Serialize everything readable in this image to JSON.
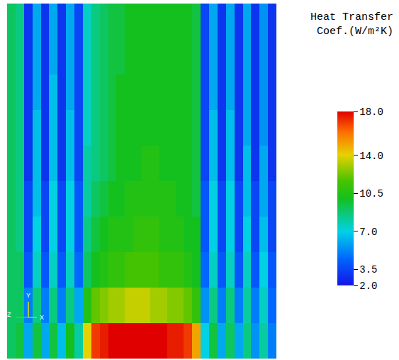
{
  "chart_data": {
    "type": "heatmap",
    "colorbar_title": [
      "Heat Transfer",
      "Coef.(W/m²K)"
    ],
    "colorbar_range": [
      2,
      18
    ],
    "colorbar_ticks": [
      {
        "value": 18,
        "label": "18.0"
      },
      {
        "value": 14,
        "label": "14.0"
      },
      10.5,
      {
        "value": 7,
        "label": "7.0"
      },
      3.5,
      {
        "value": 2,
        "label": "2.0"
      }
    ],
    "tick_labels": false,
    "triad_labels": [
      "Z",
      "Y",
      "X"
    ],
    "cells": [
      [
        9,
        8.5,
        3,
        6,
        3,
        6,
        3,
        6,
        3.5,
        7.5,
        8.5,
        9,
        9.5,
        9.5,
        10,
        10,
        10,
        10,
        10,
        10,
        10,
        10,
        9.5,
        3.5,
        6,
        3,
        6,
        3,
        6,
        3,
        5.5,
        3
      ],
      [
        9,
        8.5,
        3,
        6,
        3,
        6,
        3,
        6,
        3.5,
        7.5,
        8.5,
        9,
        9.5,
        9.5,
        10,
        10,
        10,
        10,
        10,
        10,
        10,
        10,
        9.5,
        3.5,
        6,
        3,
        6,
        3,
        6,
        3,
        5.5,
        3
      ],
      [
        9,
        8.5,
        3,
        6,
        3,
        6.5,
        3,
        6,
        3.5,
        7.5,
        8.5,
        9,
        9.5,
        10,
        10,
        10,
        10,
        10,
        10,
        10,
        10,
        10,
        9.5,
        3.5,
        6,
        3,
        6,
        3,
        6,
        3,
        5.5,
        3
      ],
      [
        9,
        8.5,
        3,
        6.5,
        3,
        6.5,
        3,
        6.5,
        3.5,
        7.5,
        8.5,
        9,
        9.5,
        10,
        10,
        10,
        10,
        10,
        10,
        10,
        10,
        10,
        9.5,
        3.5,
        6.5,
        3,
        6.5,
        3,
        6,
        3,
        5.5,
        3
      ],
      [
        9,
        8.5,
        3,
        6.5,
        3,
        6.5,
        3,
        6.5,
        3.5,
        8,
        8.5,
        9,
        9.5,
        10,
        10,
        10,
        10.5,
        10.5,
        10,
        10,
        10,
        10,
        9.5,
        3.5,
        6.5,
        3,
        6.5,
        3,
        6.5,
        3,
        6,
        3
      ],
      [
        9,
        8.5,
        3.5,
        6.5,
        3.5,
        7,
        3.5,
        7,
        4,
        8,
        9,
        9.5,
        10,
        10,
        10.5,
        10.5,
        10.5,
        10.5,
        10.5,
        10.5,
        10,
        10,
        9.5,
        4,
        7,
        3.5,
        7,
        3.5,
        6.5,
        3.5,
        6,
        3.5
      ],
      [
        9,
        8.5,
        3.5,
        7,
        3.5,
        7,
        3.5,
        7,
        4,
        8.5,
        9.5,
        10,
        10.5,
        10.5,
        10.5,
        11,
        11,
        11,
        10.5,
        10.5,
        10.5,
        10,
        10,
        4,
        7,
        3.5,
        7,
        3.5,
        7,
        3.5,
        6.5,
        3.5
      ],
      [
        9,
        9,
        4,
        7.5,
        4,
        7.5,
        4,
        7.5,
        4.5,
        9,
        10,
        10.5,
        11,
        11,
        11.5,
        11.5,
        11.5,
        11.5,
        11,
        11,
        11,
        10.5,
        10,
        4.5,
        7.5,
        4,
        7.5,
        4,
        7.5,
        4,
        7,
        4
      ],
      [
        9,
        9,
        5,
        8.5,
        5,
        8.5,
        5,
        8.5,
        6,
        10.5,
        12,
        12.5,
        13,
        13,
        13.5,
        13.5,
        13.5,
        13,
        13,
        12.5,
        12.5,
        12,
        11,
        5.5,
        8.5,
        5,
        8.5,
        5,
        8,
        5,
        7.5,
        4.5
      ],
      [
        9,
        9.5,
        6,
        9.5,
        6,
        9.5,
        6.5,
        10,
        8,
        14,
        17,
        17.5,
        18,
        18,
        18,
        18,
        18,
        18,
        18,
        17.5,
        17.5,
        17,
        15,
        7,
        9.5,
        6,
        9,
        6,
        8.5,
        5.5,
        8,
        5
      ]
    ]
  }
}
